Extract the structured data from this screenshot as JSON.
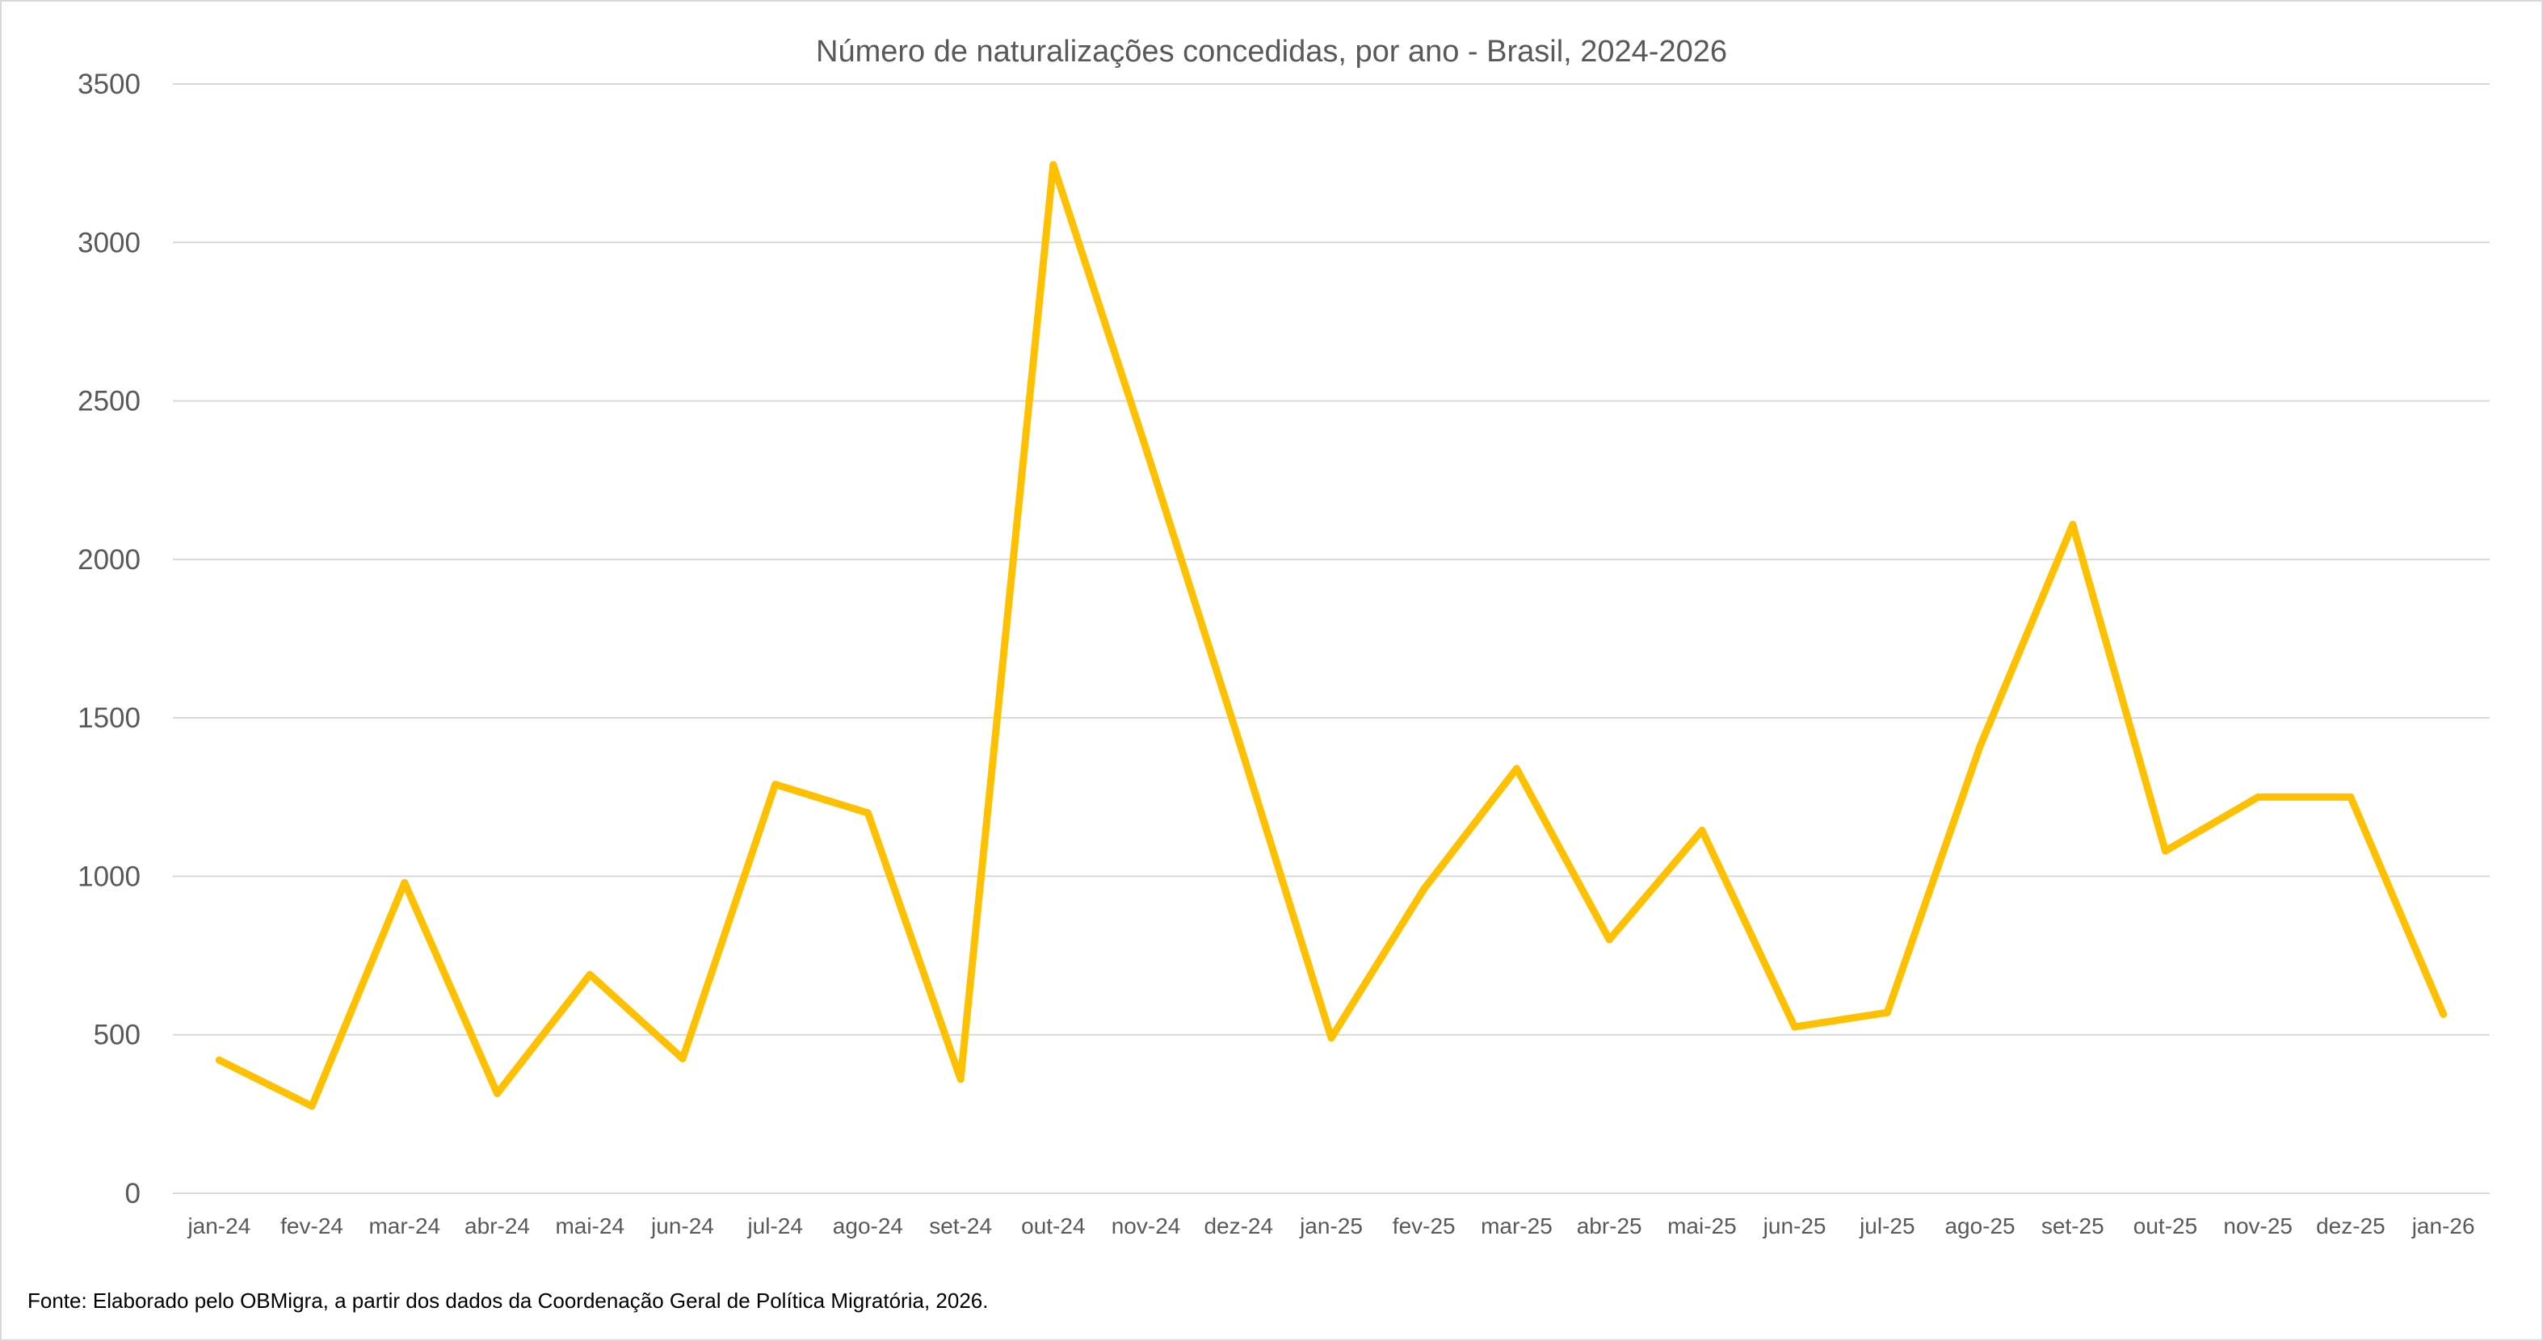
{
  "chart_data": {
    "type": "line",
    "title": "Número de naturalizações concedidas, por ano - Brasil, 2024-2026",
    "xlabel": "",
    "ylabel": "",
    "ylim": [
      0,
      3500
    ],
    "yticks": [
      "0",
      "500",
      "1000",
      "1500",
      "2000",
      "2500",
      "3000",
      "3500"
    ],
    "grid": true,
    "legend": "none",
    "categories": [
      "jan-24",
      "fev-24",
      "mar-24",
      "abr-24",
      "mai-24",
      "jun-24",
      "jul-24",
      "ago-24",
      "set-24",
      "out-24",
      "nov-24",
      "dez-24",
      "jan-25",
      "fev-25",
      "mar-25",
      "abr-25",
      "mai-25",
      "jun-25",
      "jul-25",
      "ago-25",
      "set-25",
      "out-25",
      "nov-25",
      "dez-25",
      "jan-26"
    ],
    "series": [
      {
        "color": "#FFC000",
        "values": [
          420,
          275,
          980,
          315,
          690,
          425,
          1290,
          1200,
          360,
          3245,
          2350,
          1430,
          490,
          960,
          1340,
          800,
          1145,
          525,
          570,
          1410,
          2110,
          1080,
          1250,
          1250,
          565
        ]
      }
    ]
  },
  "source": "Fonte: Elaborado pelo OBMigra,  a partir dos dados da Coordenação Geral de Política Migratória, 2026."
}
